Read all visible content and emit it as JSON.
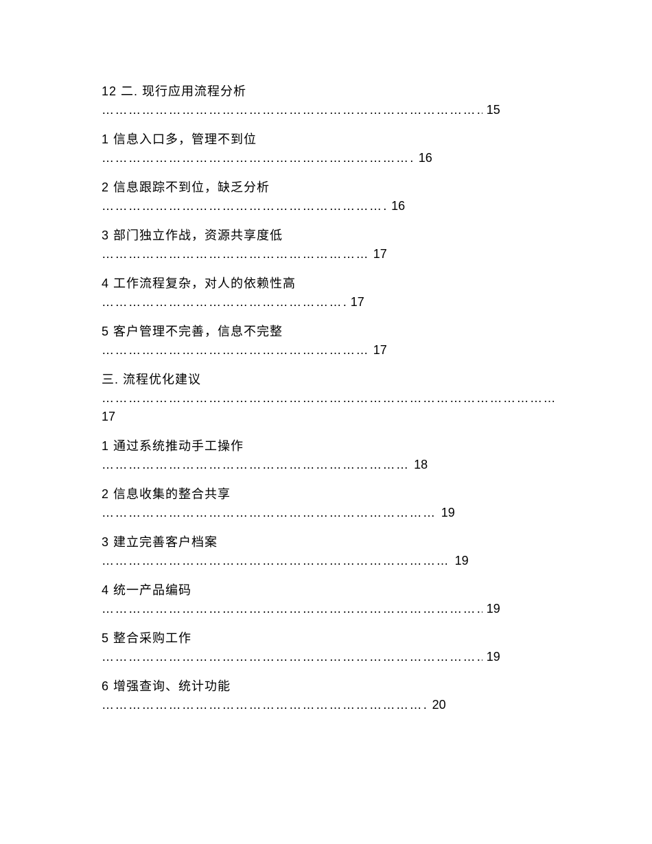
{
  "toc": {
    "background_color": "#ffffff",
    "text_color": "#000000",
    "font_size_pt": 14,
    "entries": [
      {
        "title": "12 二. 现行应用流程分析",
        "page": "15",
        "leader_width_pct": 88,
        "wrap_page": false
      },
      {
        "title": "1 信息入口多，管理不到位",
        "page": "16",
        "leader_width_pct": 73,
        "wrap_page": false
      },
      {
        "title": "2 信息跟踪不到位，缺乏分析",
        "page": "16",
        "leader_width_pct": 67,
        "wrap_page": false
      },
      {
        "title": "3 部门独立作战，资源共享度低",
        "page": "17",
        "leader_width_pct": 63,
        "wrap_page": false
      },
      {
        "title": "4 工作流程复杂，对人的依赖性高",
        "page": "17",
        "leader_width_pct": 58,
        "wrap_page": false
      },
      {
        "title": "5 客户管理不完善，信息不完整",
        "page": "17",
        "leader_width_pct": 63,
        "wrap_page": false
      },
      {
        "title": "三. 流程优化建议",
        "page": "17",
        "leader_width_pct": 100,
        "wrap_page": true
      },
      {
        "title": "1 通过系统推动手工操作",
        "page": "18",
        "leader_width_pct": 72,
        "wrap_page": false
      },
      {
        "title": "2 信息收集的整合共享",
        "page": "19",
        "leader_width_pct": 78,
        "wrap_page": false
      },
      {
        "title": "3 建立完善客户档案",
        "page": "19",
        "leader_width_pct": 81,
        "wrap_page": false
      },
      {
        "title": "4 统一产品编码",
        "page": "19",
        "leader_width_pct": 88,
        "wrap_page": false
      },
      {
        "title": "5 整合采购工作",
        "page": "19",
        "leader_width_pct": 88,
        "wrap_page": false
      },
      {
        "title": "6 增强查询、统计功能",
        "page": "20",
        "leader_width_pct": 76,
        "wrap_page": false
      }
    ]
  }
}
